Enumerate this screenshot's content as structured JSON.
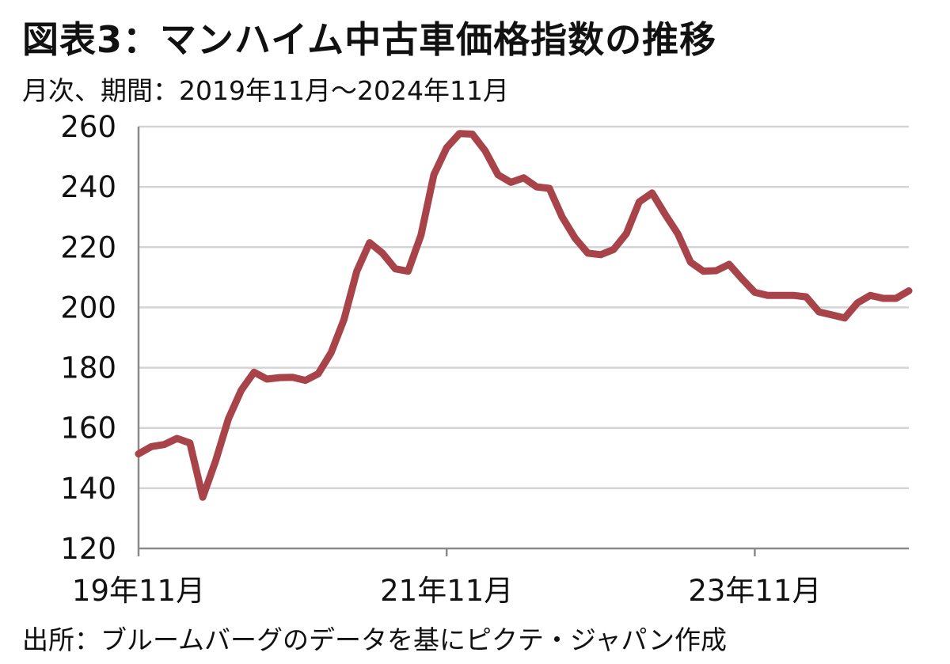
{
  "header": {
    "title": "図表3：マンハイム中古車価格指数の推移",
    "subtitle": "月次、期間：2019年11月～2024年11月"
  },
  "footer": {
    "source": "出所：ブルームバーグのデータを基にピクテ・ジャパン作成"
  },
  "chart_data": {
    "type": "line",
    "title": "図表3：マンハイム中古車価格指数の推移",
    "subtitle": "月次、期間：2019年11月～2024年11月",
    "xlabel": "",
    "ylabel": "",
    "ylim": [
      120,
      260
    ],
    "yticks": [
      120,
      140,
      160,
      180,
      200,
      220,
      240,
      260
    ],
    "xticks": [
      {
        "index": 0,
        "label": "19年11月"
      },
      {
        "index": 24,
        "label": "21年11月"
      },
      {
        "index": 48,
        "label": "23年11月"
      }
    ],
    "grid": "horizontal",
    "line_color": "#a8434a",
    "series": [
      {
        "values": [
          151.4,
          153.8,
          154.5,
          156.5,
          155.0,
          137.0,
          149.0,
          163.0,
          172.5,
          178.5,
          176.2,
          176.7,
          176.8,
          175.8,
          178.0,
          185.0,
          196.0,
          212.0,
          221.5,
          218.0,
          212.8,
          212.0,
          224.0,
          244.0,
          253.0,
          257.7,
          257.5,
          252.0,
          244.0,
          241.5,
          243.0,
          240.0,
          239.5,
          230.0,
          223.0,
          218.0,
          217.5,
          219.2,
          224.5,
          235.0,
          238.0,
          231.0,
          224.5,
          215.0,
          212.0,
          212.2,
          214.3,
          209.5,
          205.0,
          204.0,
          204.0,
          204.0,
          203.5,
          198.5,
          197.5,
          196.5,
          201.5,
          204.0,
          203.0,
          203.0,
          205.5
        ]
      }
    ],
    "source": "出所：ブルームバーグのデータを基にピクテ・ジャパン作成"
  }
}
